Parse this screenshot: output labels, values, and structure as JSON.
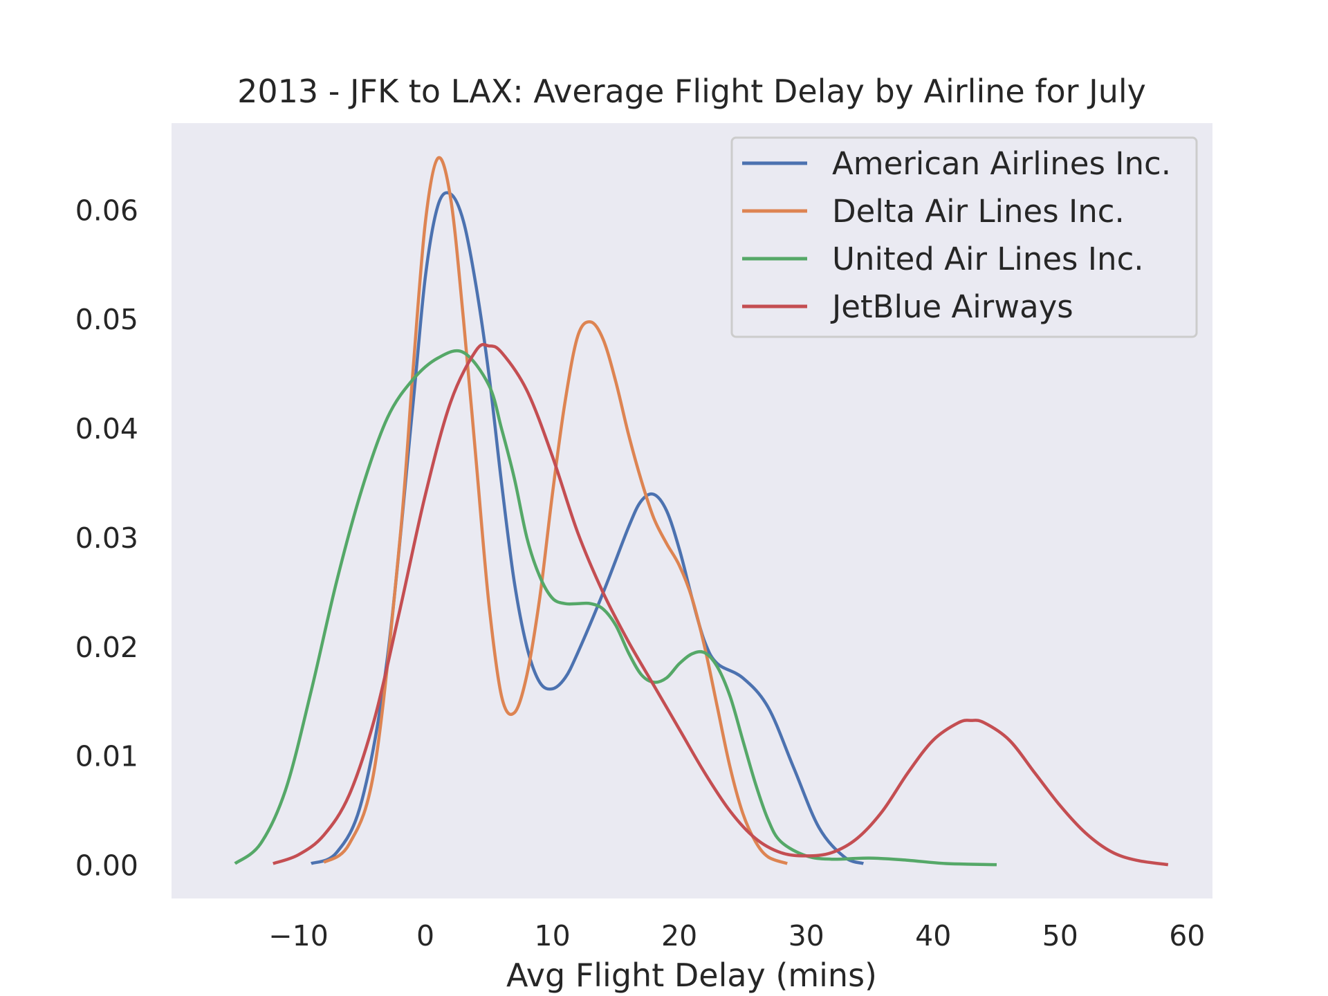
{
  "chart_data": {
    "type": "line",
    "title": "2013 - JFK to LAX: Average Flight Delay by Airline for July",
    "xlabel": "Avg Flight Delay (mins)",
    "ylabel": "",
    "xlim": [
      -20,
      62
    ],
    "ylim": [
      -0.003,
      0.068
    ],
    "xticks": [
      -10,
      0,
      10,
      20,
      30,
      40,
      50,
      60
    ],
    "xtick_labels": [
      "−10",
      "0",
      "10",
      "20",
      "30",
      "40",
      "50",
      "60"
    ],
    "yticks": [
      0.0,
      0.01,
      0.02,
      0.03,
      0.04,
      0.05,
      0.06
    ],
    "ytick_labels": [
      "0.00",
      "0.01",
      "0.02",
      "0.03",
      "0.04",
      "0.05",
      "0.06"
    ],
    "grid": false,
    "legend_position": "top-right",
    "series": [
      {
        "name": "American Airlines Inc.",
        "color": "#4c72b0",
        "points": [
          [
            -9,
            0.0002
          ],
          [
            -7,
            0.0012
          ],
          [
            -5,
            0.006
          ],
          [
            -3,
            0.019
          ],
          [
            -1,
            0.042
          ],
          [
            0,
            0.054
          ],
          [
            1,
            0.0605
          ],
          [
            2,
            0.0615
          ],
          [
            3,
            0.059
          ],
          [
            4,
            0.053
          ],
          [
            5,
            0.045
          ],
          [
            6,
            0.035
          ],
          [
            7,
            0.026
          ],
          [
            8,
            0.02
          ],
          [
            9,
            0.0168
          ],
          [
            10,
            0.0162
          ],
          [
            11,
            0.0172
          ],
          [
            12,
            0.0195
          ],
          [
            14,
            0.025
          ],
          [
            16,
            0.031
          ],
          [
            17,
            0.0334
          ],
          [
            18,
            0.034
          ],
          [
            19,
            0.0325
          ],
          [
            20,
            0.029
          ],
          [
            21,
            0.0245
          ],
          [
            22,
            0.0205
          ],
          [
            23,
            0.0185
          ],
          [
            25,
            0.0172
          ],
          [
            27,
            0.0145
          ],
          [
            29,
            0.009
          ],
          [
            31,
            0.0035
          ],
          [
            33,
            0.0008
          ],
          [
            34.5,
            0.0002
          ]
        ]
      },
      {
        "name": "Delta Air Lines Inc.",
        "color": "#dd8452",
        "points": [
          [
            -8,
            0.0003
          ],
          [
            -6,
            0.002
          ],
          [
            -4,
            0.009
          ],
          [
            -2,
            0.03
          ],
          [
            -1,
            0.045
          ],
          [
            0,
            0.059
          ],
          [
            1,
            0.0648
          ],
          [
            2,
            0.061
          ],
          [
            3,
            0.05
          ],
          [
            4,
            0.037
          ],
          [
            5,
            0.024
          ],
          [
            6,
            0.0155
          ],
          [
            7,
            0.014
          ],
          [
            8,
            0.0175
          ],
          [
            9,
            0.0245
          ],
          [
            10,
            0.034
          ],
          [
            11,
            0.0425
          ],
          [
            12,
            0.0485
          ],
          [
            13,
            0.0498
          ],
          [
            14,
            0.0482
          ],
          [
            15,
            0.0443
          ],
          [
            16,
            0.0395
          ],
          [
            17,
            0.0353
          ],
          [
            18,
            0.0318
          ],
          [
            19,
            0.0295
          ],
          [
            20,
            0.0275
          ],
          [
            21,
            0.0245
          ],
          [
            22,
            0.02
          ],
          [
            23,
            0.0145
          ],
          [
            24,
            0.009
          ],
          [
            25,
            0.0048
          ],
          [
            26,
            0.0022
          ],
          [
            27,
            0.0008
          ],
          [
            28.5,
            0.0002
          ]
        ]
      },
      {
        "name": "United Air Lines Inc.",
        "color": "#55a868",
        "points": [
          [
            -15,
            0.0002
          ],
          [
            -13,
            0.002
          ],
          [
            -11,
            0.007
          ],
          [
            -9,
            0.016
          ],
          [
            -7,
            0.026
          ],
          [
            -5,
            0.0345
          ],
          [
            -3,
            0.041
          ],
          [
            -1,
            0.0445
          ],
          [
            1,
            0.0465
          ],
          [
            3,
            0.047
          ],
          [
            5,
            0.044
          ],
          [
            6,
            0.04
          ],
          [
            7,
            0.0355
          ],
          [
            8,
            0.03
          ],
          [
            9,
            0.0265
          ],
          [
            10,
            0.0245
          ],
          [
            11,
            0.024
          ],
          [
            12,
            0.024
          ],
          [
            13,
            0.024
          ],
          [
            14,
            0.0235
          ],
          [
            15,
            0.022
          ],
          [
            16,
            0.0195
          ],
          [
            17,
            0.0175
          ],
          [
            18,
            0.0168
          ],
          [
            19,
            0.0172
          ],
          [
            20,
            0.0185
          ],
          [
            21,
            0.0194
          ],
          [
            22,
            0.0195
          ],
          [
            23,
            0.0182
          ],
          [
            24,
            0.0155
          ],
          [
            25,
            0.0115
          ],
          [
            26,
            0.0075
          ],
          [
            27,
            0.0042
          ],
          [
            28,
            0.0022
          ],
          [
            30,
            0.0009
          ],
          [
            32,
            0.0006
          ],
          [
            35,
            0.0007
          ],
          [
            38,
            0.0005
          ],
          [
            41,
            0.0002
          ],
          [
            45,
            0.0001
          ]
        ]
      },
      {
        "name": "JetBlue Airways",
        "color": "#c44e52",
        "points": [
          [
            -12,
            0.0002
          ],
          [
            -10,
            0.001
          ],
          [
            -8,
            0.0028
          ],
          [
            -6,
            0.0065
          ],
          [
            -4,
            0.0135
          ],
          [
            -2,
            0.0235
          ],
          [
            0,
            0.034
          ],
          [
            2,
            0.0425
          ],
          [
            4,
            0.0472
          ],
          [
            5,
            0.0476
          ],
          [
            6,
            0.047
          ],
          [
            8,
            0.0435
          ],
          [
            10,
            0.0375
          ],
          [
            12,
            0.0305
          ],
          [
            14,
            0.025
          ],
          [
            16,
            0.0205
          ],
          [
            18,
            0.0165
          ],
          [
            20,
            0.0125
          ],
          [
            22,
            0.0085
          ],
          [
            24,
            0.005
          ],
          [
            26,
            0.0025
          ],
          [
            28,
            0.0012
          ],
          [
            30,
            0.0009
          ],
          [
            32,
            0.0012
          ],
          [
            34,
            0.0025
          ],
          [
            36,
            0.005
          ],
          [
            38,
            0.0085
          ],
          [
            40,
            0.0115
          ],
          [
            42,
            0.0131
          ],
          [
            43,
            0.0133
          ],
          [
            44,
            0.0131
          ],
          [
            46,
            0.0115
          ],
          [
            48,
            0.0085
          ],
          [
            50,
            0.0055
          ],
          [
            52,
            0.003
          ],
          [
            54,
            0.0013
          ],
          [
            56,
            0.0005
          ],
          [
            58.5,
            0.0001
          ]
        ]
      }
    ]
  }
}
